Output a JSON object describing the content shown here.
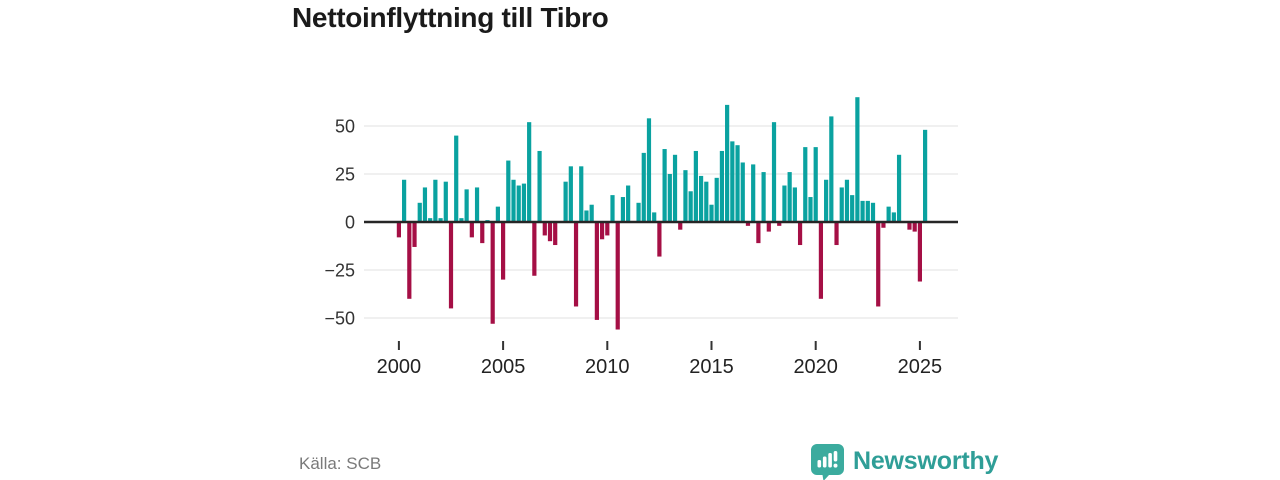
{
  "title": "Nettoinflyttning till Tibro",
  "source": {
    "label": "Källa: SCB"
  },
  "brand": {
    "name": "Newsworthy"
  },
  "colors": {
    "positive": "#0aa2a0",
    "negative": "#a50f45",
    "brand_text": "#2f9e97",
    "brand_icon": "#3bab9e",
    "zero_line": "#262626",
    "grid_line": "#e2e2e2",
    "axis_text": "#333333"
  },
  "chart_data": {
    "type": "bar",
    "title": "Nettoinflyttning till Tibro",
    "xlabel": "",
    "ylabel": "",
    "frequency": "quarterly",
    "start_period": "2000-Q1",
    "end_period": "2025-Q2",
    "ylim": [
      -62,
      70
    ],
    "grid": true,
    "y_ticks": [
      50,
      25,
      0,
      -25,
      -50
    ],
    "y_tick_labels": [
      "50",
      "25",
      "0",
      "−25",
      "−50"
    ],
    "x_ticks": [
      2000,
      2005,
      2010,
      2015,
      2020,
      2025
    ],
    "x_tick_labels": [
      "2000",
      "2005",
      "2010",
      "2015",
      "2020",
      "2025"
    ],
    "values": [
      -8,
      22,
      -40,
      -13,
      10,
      18,
      2,
      22,
      2,
      21,
      -45,
      45,
      2,
      17,
      -8,
      18,
      -11,
      1,
      -53,
      8,
      -30,
      32,
      22,
      19,
      20,
      52,
      -28,
      37,
      -7,
      -10,
      -12,
      0,
      21,
      29,
      -44,
      29,
      6,
      9,
      -51,
      -9,
      -7,
      14,
      -56,
      13,
      19,
      0,
      10,
      36,
      54,
      5,
      -18,
      38,
      25,
      35,
      -4,
      27,
      16,
      37,
      24,
      21,
      9,
      23,
      37,
      61,
      42,
      40,
      31,
      -2,
      30,
      -11,
      26,
      -5,
      52,
      -2,
      19,
      26,
      18,
      -12,
      39,
      13,
      39,
      -40,
      22,
      55,
      -12,
      18,
      22,
      14,
      65,
      11,
      11,
      10,
      -44,
      -3,
      8,
      5,
      35,
      0,
      -4,
      -5,
      -31,
      48
    ]
  }
}
